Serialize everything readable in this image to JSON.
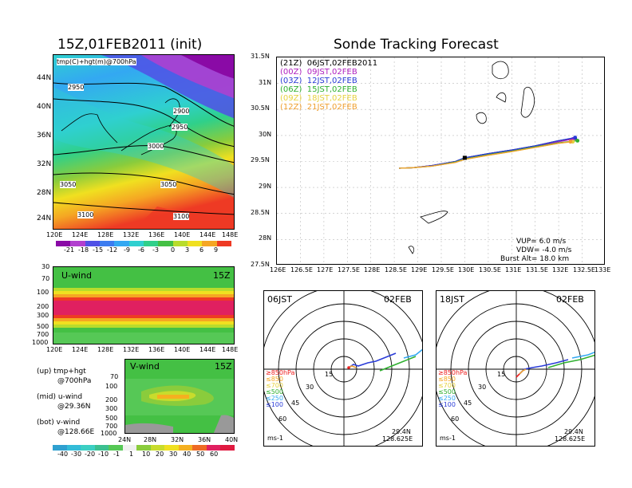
{
  "left_title": "15Z,01FEB2011 (init)",
  "right_title": "Sonde Tracking Forecast",
  "map_panel": {
    "overlay_text": "tmp(C)+hgt(m)@700hPa",
    "stamp_text": "15Z",
    "lat_labels": [
      "44N",
      "40N",
      "36N",
      "32N",
      "28N",
      "24N"
    ],
    "lon_labels": [
      "120E",
      "124E",
      "128E",
      "132E",
      "136E",
      "140E",
      "144E",
      "148E"
    ],
    "contour_labels": [
      "2950",
      "2900",
      "2950",
      "3000",
      "3050",
      "3050",
      "3100",
      "3100"
    ],
    "colorbar_labels": [
      "-21",
      "-18",
      "-15",
      "-12",
      "-9",
      "-6",
      "-3",
      "0",
      "3",
      "6",
      "9"
    ],
    "colorbar_colors": [
      "#8a0aa6",
      "#b23fcf",
      "#5050e6",
      "#3c7cf0",
      "#33a8f2",
      "#2fd0d0",
      "#2fd08a",
      "#44c044",
      "#b8dc2c",
      "#f0e020",
      "#f5a623",
      "#ee3a24"
    ]
  },
  "uwind_panel": {
    "label": "U-wind",
    "time": "15Z",
    "pressure_labels": [
      "30",
      "70",
      "100",
      "200",
      "300",
      "500",
      "700",
      "1000"
    ],
    "lon_labels": [
      "120E",
      "124E",
      "128E",
      "132E",
      "136E",
      "140E",
      "144E",
      "148E"
    ]
  },
  "vwind_panel": {
    "label": "V-wind",
    "time": "15Z",
    "pressure_labels": [
      "70",
      "100",
      "200",
      "300",
      "500",
      "700",
      "1000"
    ],
    "lat_labels": [
      "24N",
      "28N",
      "32N",
      "36N",
      "40N"
    ],
    "colorbar_labels": [
      "-40",
      "-30",
      "-20",
      "-10",
      "-1",
      "1",
      "10",
      "20",
      "30",
      "40",
      "50",
      "60"
    ],
    "colorbar_colors": [
      "#2fa0d0",
      "#33bcd8",
      "#3ccfc3",
      "#3cc090",
      "#56c856",
      "#f0f0f0",
      "#8acc3c",
      "#c8dc2c",
      "#f0e020",
      "#f5b020",
      "#ee6a24",
      "#e02060",
      "#e01a40"
    ]
  },
  "notes": {
    "line1a": "(up) tmp+hgt",
    "line1b": "@700hPa",
    "line2a": "(mid) u-wind",
    "line2b": "@29.36N",
    "line3a": "(bot) v-wind",
    "line3b": "@128.66E"
  },
  "track_panel": {
    "legend": [
      {
        "label": "(21Z)  06JST,02FEB2011",
        "color": "#000000"
      },
      {
        "label": "(00Z)  09JST,02FEB",
        "color": "#b020c0"
      },
      {
        "label": "(03Z)  12JST,02FEB",
        "color": "#2a3cd8"
      },
      {
        "label": "(06Z)  15JST,02FEB",
        "color": "#30b030"
      },
      {
        "label": "(09Z)  18JST,02FEB",
        "color": "#e6d240"
      },
      {
        "label": "(12Z)  21JST,02FEB",
        "color": "#f0a030"
      }
    ],
    "lat_labels": [
      "31.5N",
      "31N",
      "30.5N",
      "30N",
      "29.5N",
      "29N",
      "28.5N",
      "28N",
      "27.5N"
    ],
    "lon_labels": [
      "126E",
      "126.5E",
      "127E",
      "127.5E",
      "128E",
      "128.5E",
      "129E",
      "129.5E",
      "130E",
      "130.5E",
      "131E",
      "131.5E",
      "132E",
      "132.5E",
      "133E"
    ],
    "vup": "VUP=  6.0  m/s",
    "vdw": "VDW= -4.0  m/s",
    "burst": "Burst Alt=  18.0  km"
  },
  "chart_data": [
    {
      "type": "line",
      "title": "Sonde Tracking Forecast",
      "xlabel": "",
      "ylabel": "",
      "xlim": [
        126,
        133
      ],
      "ylim": [
        27.5,
        31.5
      ],
      "series": [
        {
          "name": "(21Z)  06JST,02FEB2011",
          "x": [
            128.6,
            128.9,
            129.3,
            129.8,
            130.0,
            130.5,
            131.0,
            131.5,
            132.0,
            132.35
          ],
          "y": [
            29.37,
            29.38,
            29.42,
            29.5,
            29.57,
            29.65,
            29.72,
            29.8,
            29.9,
            29.95
          ]
        },
        {
          "name": "(00Z)  09JST,02FEB",
          "x": [
            128.6,
            128.9,
            129.3,
            129.8,
            130.0,
            130.5,
            131.0,
            131.5,
            132.0,
            132.3
          ],
          "y": [
            29.37,
            29.38,
            29.42,
            29.5,
            29.56,
            29.64,
            29.71,
            29.79,
            29.88,
            29.93
          ]
        },
        {
          "name": "(03Z)  12JST,02FEB",
          "x": [
            128.6,
            128.9,
            129.3,
            129.8,
            130.0,
            130.5,
            131.0,
            131.5,
            132.0,
            132.35
          ],
          "y": [
            29.37,
            29.38,
            29.42,
            29.5,
            29.57,
            29.65,
            29.72,
            29.8,
            29.9,
            29.96
          ]
        },
        {
          "name": "(06Z)  15JST,02FEB",
          "x": [
            128.6,
            128.9,
            129.3,
            129.8,
            130.0,
            130.5,
            131.0,
            131.5,
            132.0,
            132.4
          ],
          "y": [
            29.37,
            29.38,
            29.41,
            29.49,
            29.55,
            29.63,
            29.7,
            29.78,
            29.86,
            29.9
          ]
        },
        {
          "name": "(09Z)  18JST,02FEB",
          "x": [
            128.6,
            128.9,
            129.3,
            129.8,
            130.0,
            130.5,
            131.0,
            131.5,
            132.0,
            132.3
          ],
          "y": [
            29.37,
            29.38,
            29.41,
            29.48,
            29.54,
            29.62,
            29.69,
            29.77,
            29.85,
            29.88
          ]
        },
        {
          "name": "(12Z)  21JST,02FEB",
          "x": [
            128.6,
            128.9,
            129.3,
            129.8,
            130.0,
            130.5,
            131.0,
            131.5,
            132.0,
            132.25
          ],
          "y": [
            29.37,
            29.38,
            29.41,
            29.48,
            29.54,
            29.62,
            29.69,
            29.77,
            29.85,
            29.88
          ]
        }
      ]
    }
  ],
  "hodographs": [
    {
      "time": "06JST",
      "date": "02FEB",
      "rings": [
        "15",
        "30",
        "45",
        "60"
      ],
      "levels": [
        "≥850hPa",
        "≤850",
        "≤700",
        "≤500",
        "≤250",
        "≤100"
      ],
      "level_colors": [
        "#ee2020",
        "#f5a623",
        "#e6d240",
        "#30b030",
        "#33a8f2",
        "#2a3cd8"
      ],
      "units": "ms-1",
      "lat": "29.4N",
      "lon": "128.625E"
    },
    {
      "time": "18JST",
      "date": "02FEB",
      "rings": [
        "15",
        "30",
        "45",
        "60"
      ],
      "levels": [
        "≥850hPa",
        "≤850",
        "≤700",
        "≤500",
        "≤250",
        "≤100"
      ],
      "level_colors": [
        "#ee2020",
        "#f5a623",
        "#e6d240",
        "#30b030",
        "#33a8f2",
        "#2a3cd8"
      ],
      "units": "ms-1",
      "lat": "29.4N",
      "lon": "128.625E"
    }
  ]
}
